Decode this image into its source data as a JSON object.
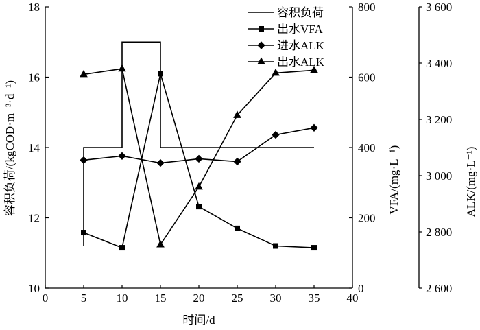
{
  "chart_data": {
    "type": "line",
    "title": "",
    "xlabel": "时间/d",
    "ylabel_left": "容积负荷/(kgCOD·m⁻³·d⁻¹)",
    "ylabel_right1": "VFA/(mg·L⁻¹)",
    "ylabel_right2": "ALK/(mg·L⁻¹)",
    "xlim": [
      0,
      40
    ],
    "x_ticks": [
      "0",
      "5",
      "10",
      "15",
      "20",
      "25",
      "30",
      "35",
      "40"
    ],
    "x_tick_values": [
      0,
      5,
      10,
      15,
      20,
      25,
      30,
      35,
      40
    ],
    "ylim_left": [
      10,
      18
    ],
    "y_left_ticks": [
      "10",
      "12",
      "14",
      "16",
      "18"
    ],
    "y_left_tick_values": [
      10,
      12,
      14,
      16,
      18
    ],
    "ylim_right1": [
      0,
      800
    ],
    "y_right1_ticks": [
      "0",
      "200",
      "400",
      "600",
      "800"
    ],
    "y_right1_tick_values": [
      0,
      200,
      400,
      600,
      800
    ],
    "ylim_right2": [
      2600,
      3600
    ],
    "y_right2_ticks": [
      "2 600",
      "2 800",
      "3 000",
      "3 200",
      "3 400",
      "3 600"
    ],
    "y_right2_tick_values": [
      2600,
      2800,
      3000,
      3200,
      3400,
      3600
    ],
    "grid": false,
    "legend_position": "top-right",
    "series": [
      {
        "name": "容积负荷",
        "axis": "left",
        "marker": "none",
        "step": true,
        "x": [
          5,
          5,
          10,
          10,
          15,
          15,
          35
        ],
        "y": [
          11.2,
          14,
          14,
          17,
          17,
          14,
          14
        ]
      },
      {
        "name": "出水VFA",
        "axis": "right1",
        "marker": "square",
        "x": [
          5,
          10,
          15,
          20,
          25,
          30,
          35
        ],
        "y": [
          158,
          115,
          610,
          232,
          170,
          120,
          115
        ]
      },
      {
        "name": "进水ALK",
        "axis": "right2",
        "marker": "diamond",
        "x": [
          5,
          10,
          15,
          20,
          25,
          30,
          35
        ],
        "y": [
          3055,
          3070,
          3045,
          3060,
          3050,
          3145,
          3170
        ]
      },
      {
        "name": "出水ALK",
        "axis": "right2",
        "marker": "triangle",
        "x": [
          5,
          10,
          15,
          20,
          25,
          30,
          35
        ],
        "y": [
          3360,
          3380,
          2755,
          2960,
          3215,
          3365,
          3375
        ]
      }
    ]
  }
}
